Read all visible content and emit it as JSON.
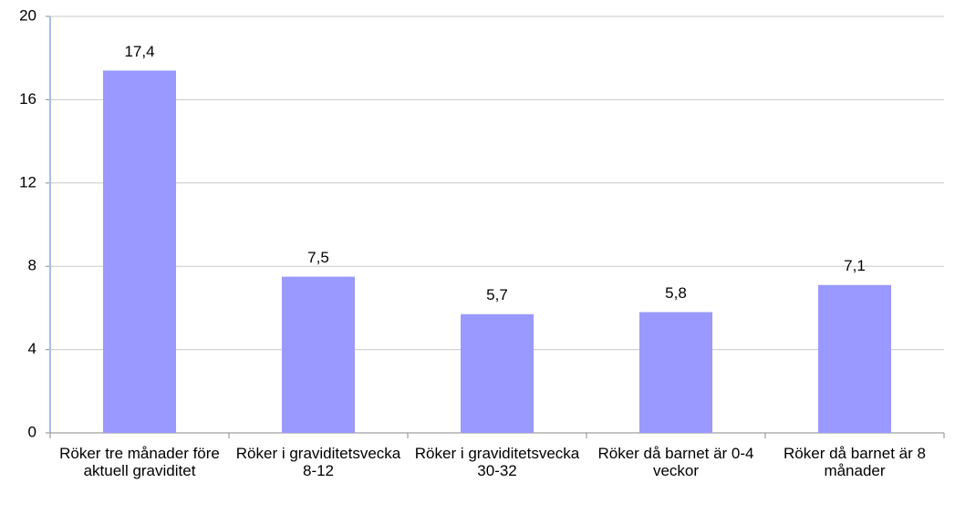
{
  "chart_data": {
    "type": "bar",
    "categories": [
      "Röker tre månader före aktuell graviditet",
      "Röker i graviditetsvecka 8-12",
      "Röker i graviditetsvecka 30-32",
      "Röker då barnet är 0-4 veckor",
      "Röker då barnet är 8 månader"
    ],
    "values": [
      17.4,
      7.5,
      5.7,
      5.8,
      7.1
    ],
    "value_labels": [
      "17,4",
      "7,5",
      "5,7",
      "5,8",
      "7,1"
    ],
    "color": "#9999ff",
    "ylim": [
      0,
      20
    ],
    "yticks": [
      0,
      4,
      8,
      12,
      16,
      20
    ],
    "grid": true
  }
}
